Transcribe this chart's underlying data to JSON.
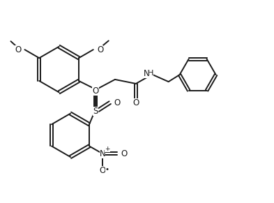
{
  "bg_color": "#ffffff",
  "line_color": "#1a1a1a",
  "text_color": "#1a1a1a",
  "line_width": 1.4,
  "font_size": 8.5,
  "figsize": [
    3.93,
    2.91
  ],
  "dpi": 100,
  "xlim": [
    0,
    9.8
  ],
  "ylim": [
    0,
    7.2
  ]
}
